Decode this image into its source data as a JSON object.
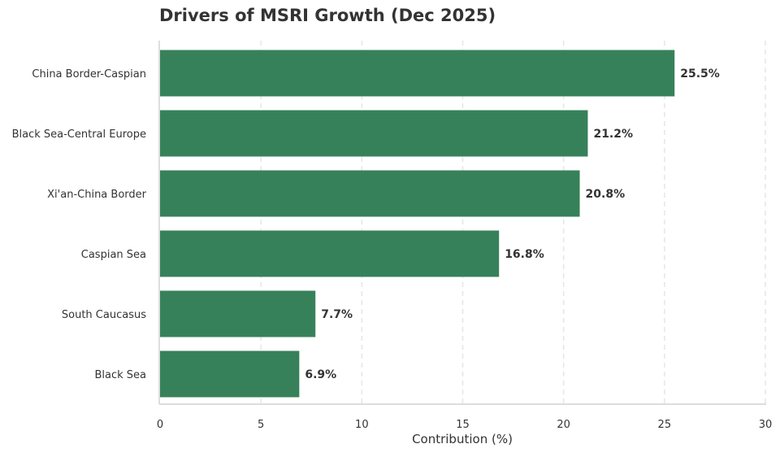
{
  "chart_data": {
    "type": "bar",
    "orientation": "horizontal",
    "title": "Drivers of MSRI Growth (Dec 2025)",
    "xlabel": "Contribution (%)",
    "ylabel": "",
    "categories": [
      "China Border-Caspian",
      "Black Sea-Central Europe",
      "Xi'an-China Border",
      "Caspian Sea",
      "South Caucasus",
      "Black Sea"
    ],
    "values": [
      25.5,
      21.2,
      20.8,
      16.8,
      7.7,
      6.9
    ],
    "data_labels": [
      "25.5%",
      "21.2%",
      "20.8%",
      "16.8%",
      "7.7%",
      "6.9%"
    ],
    "xlim": [
      0,
      30
    ],
    "xticks": [
      "0",
      "5",
      "10",
      "15",
      "20",
      "25",
      "30"
    ],
    "grid": "vertical dashed",
    "bar_color": "#37815a",
    "text_color": "#333333"
  }
}
